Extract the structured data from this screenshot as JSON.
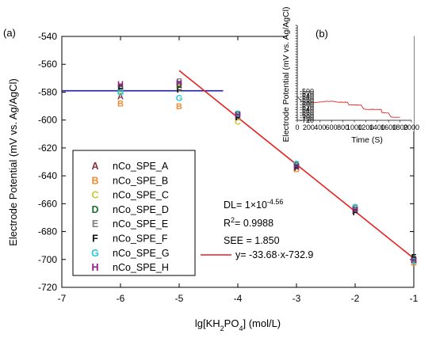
{
  "chart_data": [
    {
      "type": "scatter",
      "panel_label": "(a)",
      "xlabel": "lg[KH2PO4] (mol/L)",
      "xlabel_parts": {
        "prefix": "lg[KH",
        "sub1": "2",
        "mid": "PO",
        "sub2": "4",
        "suffix": "] (mol/L)"
      },
      "ylabel": "Electrode Potential (mV vs. Ag/AgCl)",
      "xlim": [
        -7,
        -1
      ],
      "ylim": [
        -720,
        -540
      ],
      "xticks": [
        -7,
        -6,
        -5,
        -4,
        -3,
        -2,
        -1
      ],
      "yticks": [
        -540,
        -560,
        -580,
        -600,
        -620,
        -640,
        -660,
        -680,
        -700,
        -720
      ],
      "grid": false,
      "series": [
        {
          "name": "nCo_SPE_A",
          "marker": "A",
          "color": "#8b2f3e",
          "x": [
            -6,
            -5,
            -4,
            -3,
            -2,
            -1
          ],
          "y": [
            -583,
            -575,
            -597,
            -634,
            -665,
            -700
          ]
        },
        {
          "name": "nCo_SPE_B",
          "marker": "B",
          "color": "#f08c32",
          "x": [
            -6,
            -5,
            -4,
            -3,
            -2,
            -1
          ],
          "y": [
            -588,
            -590,
            -598,
            -635,
            -664,
            -702
          ]
        },
        {
          "name": "nCo_SPE_C",
          "marker": "C",
          "color": "#c8c832",
          "x": [
            -6,
            -5,
            -4,
            -3,
            -2,
            -1
          ],
          "y": [
            -579,
            -577,
            -601,
            -633,
            -663,
            -701
          ]
        },
        {
          "name": "nCo_SPE_D",
          "marker": "D",
          "color": "#1e6e32",
          "x": [
            -6,
            -5,
            -4,
            -3,
            -2,
            -1
          ],
          "y": [
            -577,
            -574,
            -596,
            -632,
            -664,
            -699
          ]
        },
        {
          "name": "nCo_SPE_E",
          "marker": "E",
          "color": "#7f7f7f",
          "x": [
            -6,
            -5,
            -4,
            -3,
            -2,
            -1
          ],
          "y": [
            -576,
            -572,
            -597,
            -633,
            -663,
            -700
          ]
        },
        {
          "name": "nCo_SPE_F",
          "marker": "F",
          "color": "#111111",
          "x": [
            -6,
            -5,
            -4,
            -3,
            -2,
            -1
          ],
          "y": [
            -577,
            -578,
            -598,
            -634,
            -666,
            -698
          ]
        },
        {
          "name": "nCo_SPE_G",
          "marker": "G",
          "color": "#28c8dc",
          "x": [
            -6,
            -5,
            -4,
            -3,
            -2,
            -1
          ],
          "y": [
            -580,
            -584,
            -595,
            -631,
            -662,
            -701
          ]
        },
        {
          "name": "nCo_SPE_H",
          "marker": "H",
          "color": "#8c1e82",
          "x": [
            -6,
            -5,
            -4,
            -3,
            -2,
            -1
          ],
          "y": [
            -574,
            -573,
            -596,
            -633,
            -664,
            -700
          ]
        }
      ],
      "reference_lines": [
        {
          "kind": "horizontal",
          "color": "#1f1fa0",
          "x": [
            -7,
            -4.25
          ],
          "y": -579
        },
        {
          "kind": "fit",
          "color": "#e82020",
          "name": "y= -33.68·x-732.9",
          "slope": -33.68,
          "intercept": -732.9,
          "x": [
            -5,
            -1
          ]
        }
      ],
      "annotations": {
        "dl": {
          "text": "DL= 1×10",
          "exp": "-4.56"
        },
        "r2": {
          "text": "R",
          "sup": "2",
          "value": "= 0.9988"
        },
        "see": "SEE = 1.850",
        "fit_label": "y= -33.68·x-732.9"
      },
      "legend_position": "left-lower inside"
    },
    {
      "type": "line",
      "panel_label": "(b)",
      "xlabel": "Time (S)",
      "ylabel": "Electrode Potential (mV vs. Ag/AgCl)",
      "xlim": [
        0,
        2000
      ],
      "ylim": [
        -720,
        0
      ],
      "xticks": [
        0,
        200,
        400,
        600,
        800,
        1000,
        1200,
        1400,
        1600,
        1800,
        2000
      ],
      "yticks": [
        0,
        -20,
        -40,
        -60,
        -80,
        -100,
        -120,
        -140,
        -160,
        -180,
        -200,
        -220,
        -240,
        -260,
        -280,
        -300,
        -320,
        -340,
        -360,
        -380,
        -400,
        -420,
        -440,
        -460,
        -480,
        -500,
        -520,
        -540,
        -560,
        -580,
        -600,
        -620,
        -640,
        -660,
        -680,
        -700,
        -720
      ],
      "yticklabels_shown": [
        "-500",
        "-520",
        "-540",
        "-560",
        "-580",
        "-600",
        "-620",
        "-640",
        "-660",
        "-680",
        "-700",
        "-720"
      ],
      "series": [
        {
          "color": "#555555",
          "x": [
            0,
            15,
            40,
            70,
            100,
            140,
            170,
            200,
            230,
            260,
            280
          ],
          "y": [
            -553,
            -545,
            -560,
            -574,
            -582,
            -586,
            -585,
            -588,
            -589,
            -585,
            -587
          ]
        },
        {
          "color": "#e82020",
          "x": [
            280,
            320,
            360,
            400,
            440,
            480,
            520,
            560,
            600,
            640,
            680,
            720,
            760,
            800,
            840,
            880,
            900,
            920,
            960,
            1000,
            1040,
            1080,
            1120,
            1160,
            1200,
            1240,
            1280,
            1320,
            1360,
            1400,
            1440,
            1470,
            1480,
            1520,
            1560,
            1600,
            1640,
            1680,
            1720,
            1760,
            1800
          ],
          "y": [
            -587,
            -584,
            -583,
            -581,
            -580,
            -577,
            -575,
            -578,
            -574,
            -577,
            -580,
            -583,
            -582,
            -583,
            -582,
            -584,
            -600,
            -603,
            -602,
            -604,
            -603,
            -605,
            -604,
            -633,
            -637,
            -637,
            -638,
            -636,
            -638,
            -638,
            -637,
            -638,
            -660,
            -663,
            -664,
            -665,
            -694,
            -697,
            -697,
            -697,
            -697
          ]
        }
      ]
    }
  ]
}
